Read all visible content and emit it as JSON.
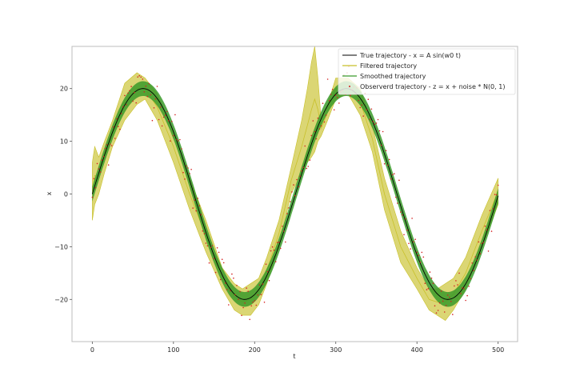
{
  "chart_data": {
    "type": "line",
    "title": "",
    "xlabel": "t",
    "ylabel": "x",
    "xlim": [
      -25,
      524
    ],
    "ylim": [
      -28,
      28
    ],
    "xticks": [
      0,
      100,
      200,
      300,
      400,
      500
    ],
    "yticks": [
      -20,
      -10,
      0,
      10,
      20
    ],
    "xtick_labels": [
      "0",
      "100",
      "200",
      "300",
      "400",
      "500"
    ],
    "ytick_labels": [
      "−20",
      "−10",
      "0",
      "10",
      "20"
    ],
    "grid": false,
    "legend_position": "top-right",
    "series": [
      {
        "name": "True trajectory - x = A sin(w0 t)",
        "kind": "line",
        "color": "#000000",
        "amplitude": 20,
        "omega": 0.0251,
        "t_range": [
          0,
          500
        ]
      },
      {
        "name": "Filtered trajectory",
        "kind": "band",
        "color": "#c8c02a",
        "x": [
          0,
          3,
          8,
          15,
          25,
          40,
          55,
          65,
          80,
          100,
          120,
          140,
          160,
          175,
          185,
          195,
          205,
          215,
          230,
          245,
          258,
          265,
          270,
          274,
          278,
          282,
          290,
          300,
          315,
          330,
          345,
          360,
          380,
          400,
          415,
          425,
          435,
          445,
          460,
          480,
          500
        ],
        "upper": [
          6,
          9,
          7,
          10,
          14,
          21,
          23,
          22,
          19,
          12,
          3,
          -5,
          -14,
          -17,
          -18,
          -17,
          -16,
          -12,
          -5,
          5,
          14,
          20,
          25,
          28,
          22,
          14,
          17,
          22,
          22,
          20,
          13,
          3,
          -7,
          -14,
          -18,
          -18,
          -17,
          -16,
          -12,
          -4,
          3
        ],
        "lower": [
          -5,
          -2,
          0,
          4,
          9,
          14,
          17,
          18,
          14,
          6,
          -3,
          -11,
          -18,
          -22,
          -23,
          -23,
          -21,
          -17,
          -10,
          0,
          4,
          6,
          7,
          8,
          10,
          11,
          14,
          18,
          19,
          15,
          8,
          -3,
          -13,
          -18,
          -22,
          -23,
          -24,
          -22,
          -18,
          -10,
          -2
        ]
      },
      {
        "name": "Smoothed trajectory",
        "kind": "band",
        "color": "#3a9a2a",
        "halfwidth": 1.4
      },
      {
        "name": "Observerd trajectory - z = x + noise * N(0, 1)",
        "kind": "scatter",
        "color": "#d42020",
        "t_range": [
          0,
          500
        ],
        "step": 2,
        "noise_std": 2
      }
    ]
  }
}
